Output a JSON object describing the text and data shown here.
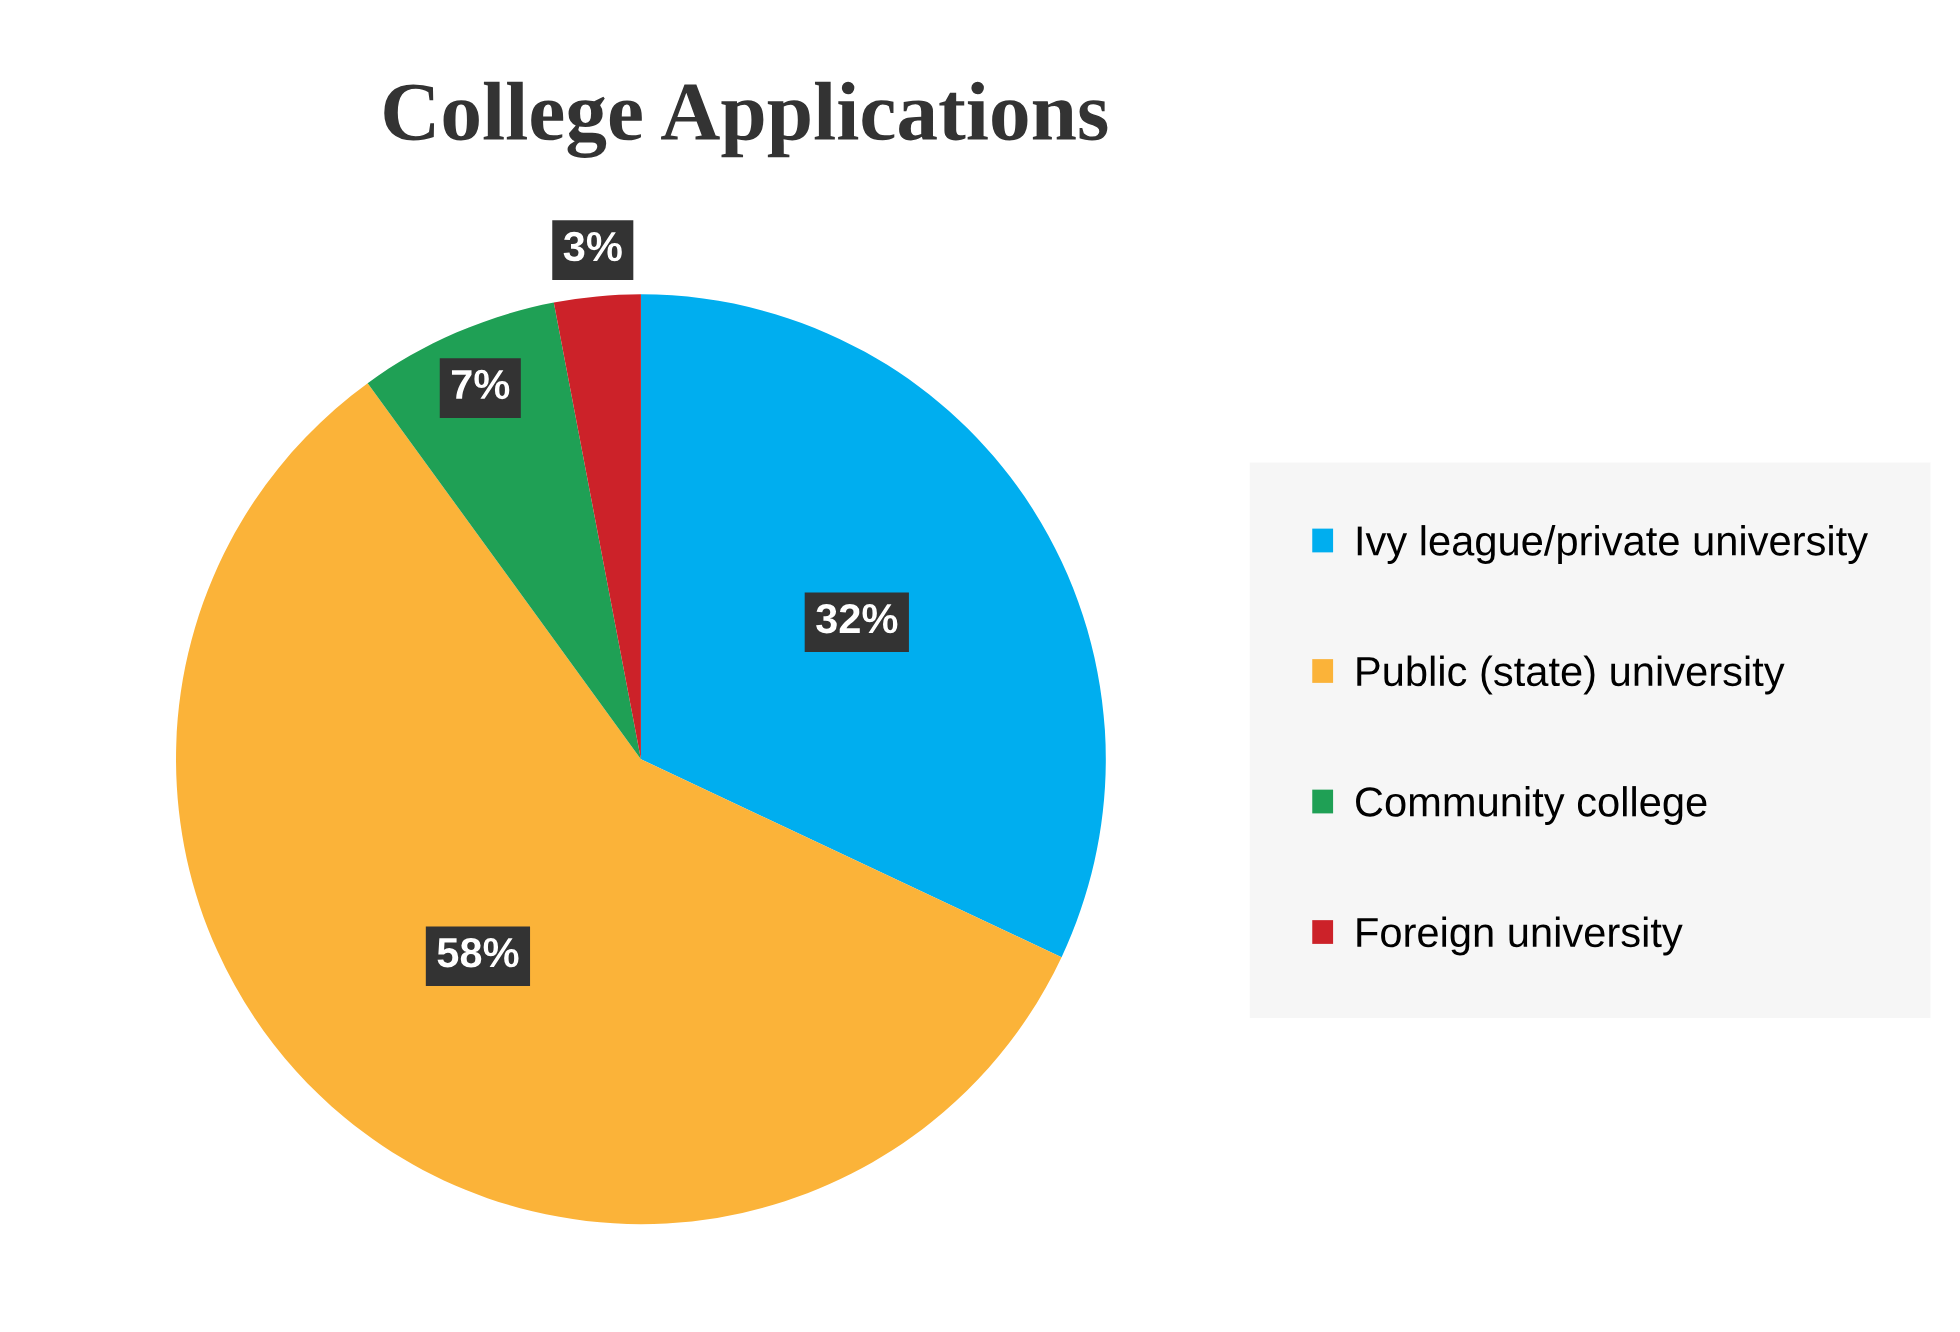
{
  "chart_data": {
    "type": "pie",
    "title": "College Applications",
    "categories": [
      "Ivy league/private university",
      "Public (state) university",
      "Community college",
      "Foreign university"
    ],
    "values": [
      32,
      58,
      7,
      3
    ],
    "colors": [
      "#00aeef",
      "#fbb339",
      "#1fa055",
      "#cc2229"
    ],
    "value_labels": [
      "32%",
      "58%",
      "7%",
      "3%"
    ],
    "legend": "right"
  }
}
